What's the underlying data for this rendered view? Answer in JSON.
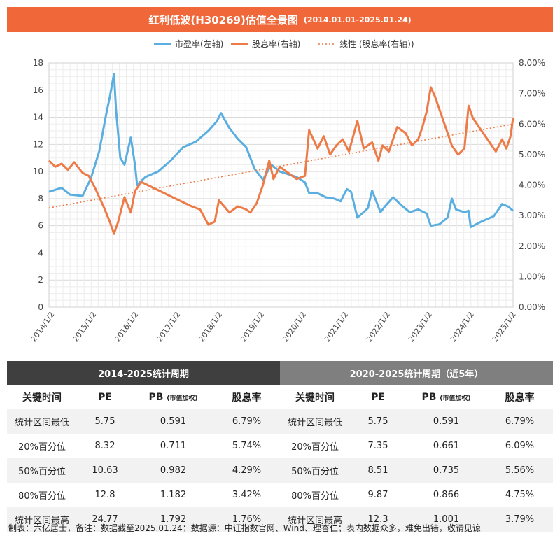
{
  "header": {
    "title": "红利低波(H30269)估值全景图",
    "subtitle": "(2014.01.01-2025.01.24)"
  },
  "chart_data": {
    "type": "line",
    "legend_position": "top",
    "grid": true,
    "x_ticks": [
      "2014/1/2",
      "2015/1/2",
      "2016/1/2",
      "2017/1/2",
      "2018/1/2",
      "2019/1/2",
      "2020/1/2",
      "2021/1/2",
      "2022/1/2",
      "2023/1/2",
      "2024/1/2",
      "2025/1/2"
    ],
    "y_left": {
      "lim": [
        0,
        18
      ],
      "ticks": [
        "0",
        "2",
        "4",
        "6",
        "8",
        "10",
        "12",
        "14",
        "16",
        "18"
      ]
    },
    "y_right": {
      "lim": [
        0,
        8
      ],
      "ticks": [
        "0.00%",
        "1.00%",
        "2.00%",
        "3.00%",
        "4.00%",
        "5.00%",
        "6.00%",
        "7.00%",
        "8.00%"
      ]
    },
    "series": [
      {
        "name": "市盈率(左轴)",
        "axis": "left",
        "color": "#5aaee0",
        "points": [
          [
            2014.0,
            8.5
          ],
          [
            2014.3,
            8.8
          ],
          [
            2014.5,
            8.3
          ],
          [
            2014.8,
            8.2
          ],
          [
            2015.0,
            9.5
          ],
          [
            2015.2,
            11.5
          ],
          [
            2015.35,
            14.0
          ],
          [
            2015.45,
            15.5
          ],
          [
            2015.55,
            17.2
          ],
          [
            2015.6,
            14.5
          ],
          [
            2015.7,
            11.0
          ],
          [
            2015.8,
            10.5
          ],
          [
            2015.95,
            12.5
          ],
          [
            2016.05,
            10.5
          ],
          [
            2016.1,
            9.0
          ],
          [
            2016.3,
            9.6
          ],
          [
            2016.6,
            10.0
          ],
          [
            2016.9,
            10.8
          ],
          [
            2017.2,
            11.8
          ],
          [
            2017.5,
            12.2
          ],
          [
            2017.8,
            13.0
          ],
          [
            2018.0,
            13.7
          ],
          [
            2018.1,
            14.3
          ],
          [
            2018.3,
            13.2
          ],
          [
            2018.5,
            12.4
          ],
          [
            2018.7,
            11.8
          ],
          [
            2018.9,
            10.2
          ],
          [
            2019.1,
            9.4
          ],
          [
            2019.3,
            10.5
          ],
          [
            2019.5,
            10.0
          ],
          [
            2019.7,
            9.8
          ],
          [
            2019.9,
            9.6
          ],
          [
            2020.1,
            9.2
          ],
          [
            2020.2,
            8.4
          ],
          [
            2020.4,
            8.4
          ],
          [
            2020.6,
            8.1
          ],
          [
            2020.8,
            8.0
          ],
          [
            2020.95,
            7.8
          ],
          [
            2021.1,
            8.7
          ],
          [
            2021.2,
            8.5
          ],
          [
            2021.35,
            6.6
          ],
          [
            2021.5,
            7.0
          ],
          [
            2021.6,
            7.3
          ],
          [
            2021.7,
            8.6
          ],
          [
            2021.9,
            7.0
          ],
          [
            2022.0,
            7.4
          ],
          [
            2022.2,
            8.1
          ],
          [
            2022.4,
            7.5
          ],
          [
            2022.6,
            7.0
          ],
          [
            2022.8,
            7.2
          ],
          [
            2023.0,
            6.9
          ],
          [
            2023.1,
            6.0
          ],
          [
            2023.3,
            6.1
          ],
          [
            2023.5,
            6.6
          ],
          [
            2023.6,
            8.0
          ],
          [
            2023.7,
            7.2
          ],
          [
            2023.9,
            7.0
          ],
          [
            2024.0,
            7.1
          ],
          [
            2024.05,
            5.9
          ],
          [
            2024.3,
            6.3
          ],
          [
            2024.6,
            6.7
          ],
          [
            2024.8,
            7.6
          ],
          [
            2024.95,
            7.4
          ],
          [
            2025.06,
            7.1
          ]
        ]
      },
      {
        "name": "股息率(右轴)",
        "axis": "right",
        "color": "#ee7b47",
        "points": [
          [
            2014.0,
            4.8
          ],
          [
            2014.15,
            4.6
          ],
          [
            2014.3,
            4.7
          ],
          [
            2014.45,
            4.5
          ],
          [
            2014.6,
            4.75
          ],
          [
            2014.8,
            4.4
          ],
          [
            2014.95,
            4.3
          ],
          [
            2015.1,
            3.9
          ],
          [
            2015.3,
            3.3
          ],
          [
            2015.45,
            2.8
          ],
          [
            2015.55,
            2.4
          ],
          [
            2015.65,
            2.8
          ],
          [
            2015.8,
            3.6
          ],
          [
            2015.95,
            3.1
          ],
          [
            2016.05,
            3.8
          ],
          [
            2016.2,
            4.1
          ],
          [
            2016.5,
            3.9
          ],
          [
            2016.8,
            3.7
          ],
          [
            2017.1,
            3.5
          ],
          [
            2017.4,
            3.3
          ],
          [
            2017.6,
            3.2
          ],
          [
            2017.8,
            2.7
          ],
          [
            2017.95,
            2.8
          ],
          [
            2018.05,
            3.5
          ],
          [
            2018.3,
            3.1
          ],
          [
            2018.5,
            3.3
          ],
          [
            2018.7,
            3.2
          ],
          [
            2018.8,
            3.1
          ],
          [
            2018.95,
            3.4
          ],
          [
            2019.1,
            4.0
          ],
          [
            2019.25,
            4.8
          ],
          [
            2019.35,
            4.2
          ],
          [
            2019.5,
            4.6
          ],
          [
            2019.7,
            4.4
          ],
          [
            2019.9,
            4.2
          ],
          [
            2020.1,
            4.3
          ],
          [
            2020.2,
            5.8
          ],
          [
            2020.4,
            5.2
          ],
          [
            2020.55,
            5.6
          ],
          [
            2020.7,
            5.0
          ],
          [
            2020.85,
            5.3
          ],
          [
            2021.0,
            5.5
          ],
          [
            2021.15,
            5.1
          ],
          [
            2021.35,
            6.1
          ],
          [
            2021.5,
            5.2
          ],
          [
            2021.7,
            5.4
          ],
          [
            2021.85,
            4.8
          ],
          [
            2021.95,
            5.3
          ],
          [
            2022.1,
            5.1
          ],
          [
            2022.3,
            5.9
          ],
          [
            2022.5,
            5.7
          ],
          [
            2022.65,
            5.3
          ],
          [
            2022.8,
            5.5
          ],
          [
            2022.9,
            5.9
          ],
          [
            2023.0,
            6.4
          ],
          [
            2023.1,
            7.2
          ],
          [
            2023.2,
            6.9
          ],
          [
            2023.35,
            6.3
          ],
          [
            2023.5,
            5.7
          ],
          [
            2023.6,
            5.3
          ],
          [
            2023.75,
            5.0
          ],
          [
            2023.9,
            5.2
          ],
          [
            2024.0,
            6.6
          ],
          [
            2024.1,
            6.2
          ],
          [
            2024.3,
            5.8
          ],
          [
            2024.5,
            5.4
          ],
          [
            2024.65,
            5.1
          ],
          [
            2024.8,
            5.5
          ],
          [
            2024.9,
            5.2
          ],
          [
            2025.0,
            5.6
          ],
          [
            2025.06,
            6.2
          ]
        ]
      },
      {
        "name": "线性 (股息率(右轴))",
        "axis": "right",
        "color": "#ee7b47",
        "dashed": true,
        "points": [
          [
            2014.0,
            3.25
          ],
          [
            2025.06,
            6.0
          ]
        ]
      }
    ]
  },
  "table": {
    "period_headers": [
      "2014-2025统计周期",
      "2020-2025统计周期（近5年）"
    ],
    "column_headers": [
      "关键时间",
      "PE",
      "PB",
      "(市值加权)",
      "股息率",
      "关键时间",
      "PE",
      "PB",
      "(市值加权)",
      "股息率"
    ],
    "rows": [
      [
        "统计区间最低",
        "5.75",
        "0.591",
        "6.79%",
        "统计区间最低",
        "5.75",
        "0.591",
        "6.79%"
      ],
      [
        "20%百分位",
        "8.32",
        "0.711",
        "5.74%",
        "20%百分位",
        "7.35",
        "0.661",
        "6.09%"
      ],
      [
        "50%百分位",
        "10.63",
        "0.982",
        "4.29%",
        "50%百分位",
        "8.51",
        "0.735",
        "5.56%"
      ],
      [
        "80%百分位",
        "12.8",
        "1.182",
        "3.42%",
        "80%百分位",
        "9.87",
        "0.866",
        "4.75%"
      ],
      [
        "统计区间最高",
        "24.77",
        "1.792",
        "1.76%",
        "统计区间最高",
        "12.3",
        "1.001",
        "3.79%"
      ]
    ]
  },
  "footnote": "制表：六亿居士，备注：数据截至2025.01.24；数据源：中证指数官网、Wind、理杏仁；表内数据众多，难免出错，敬请见谅"
}
